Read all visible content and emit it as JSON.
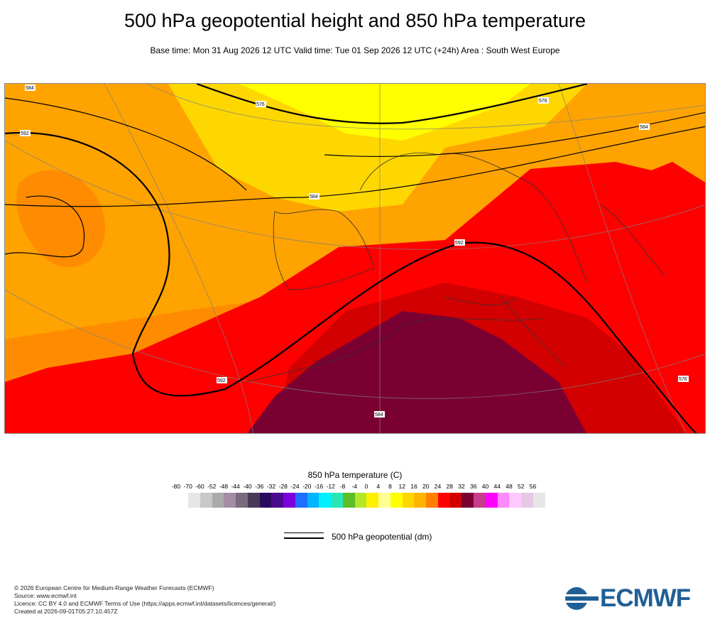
{
  "header": {
    "title": "500 hPa geopotential height and 850 hPa temperature",
    "subtitle": "Base time: Mon 31 Aug 2026 12 UTC Valid time: Tue 01 Sep 2026 12 UTC (+24h) Area : South West Europe"
  },
  "map": {
    "contour_labels": [
      "584",
      "576",
      "592",
      "584",
      "576",
      "584",
      "592",
      "584",
      "592",
      "576"
    ]
  },
  "legend": {
    "title": "850 hPa temperature (C)",
    "ticks": [
      "-80",
      "-70",
      "-60",
      "-52",
      "-48",
      "-44",
      "-40",
      "-36",
      "-32",
      "-28",
      "-24",
      "-20",
      "-16",
      "-12",
      "-8",
      "-4",
      "0",
      "4",
      "8",
      "12",
      "16",
      "20",
      "24",
      "28",
      "32",
      "36",
      "40",
      "44",
      "48",
      "52",
      "56"
    ],
    "colors": [
      "#e6e6e6",
      "#c8c8c8",
      "#aaaaaa",
      "#a48ca4",
      "#7a6a7e",
      "#483a58",
      "#2a0a5e",
      "#4a0a8c",
      "#7a00dc",
      "#1e6eff",
      "#00b4ff",
      "#00f0ff",
      "#28e6b4",
      "#5abe28",
      "#b4e628",
      "#fff000",
      "#ffff96",
      "#ffff00",
      "#ffd700",
      "#ffb400",
      "#ff8000",
      "#ff0000",
      "#d20000",
      "#7a0032",
      "#c83c8c",
      "#ff00ff",
      "#ff88ff",
      "#ffc8ff",
      "#e6c8e6",
      "#e6e6e6"
    ],
    "line_label": "500 hPa geopotential (dm)"
  },
  "footer": {
    "line1": "© 2026 European Centre for Medium-Range Weather Forecasts (ECMWF)",
    "line2": "Source: www.ecmwf.int",
    "line3": "Licence: CC BY 4.0 and ECMWF Terms of Use (https://apps.ecmwf.int/datasets/licences/general/)",
    "line4": "Created at 2026-09-01T05:27:10.457Z"
  },
  "logo": {
    "text": "ECMWF",
    "color": "#1f5f96"
  }
}
